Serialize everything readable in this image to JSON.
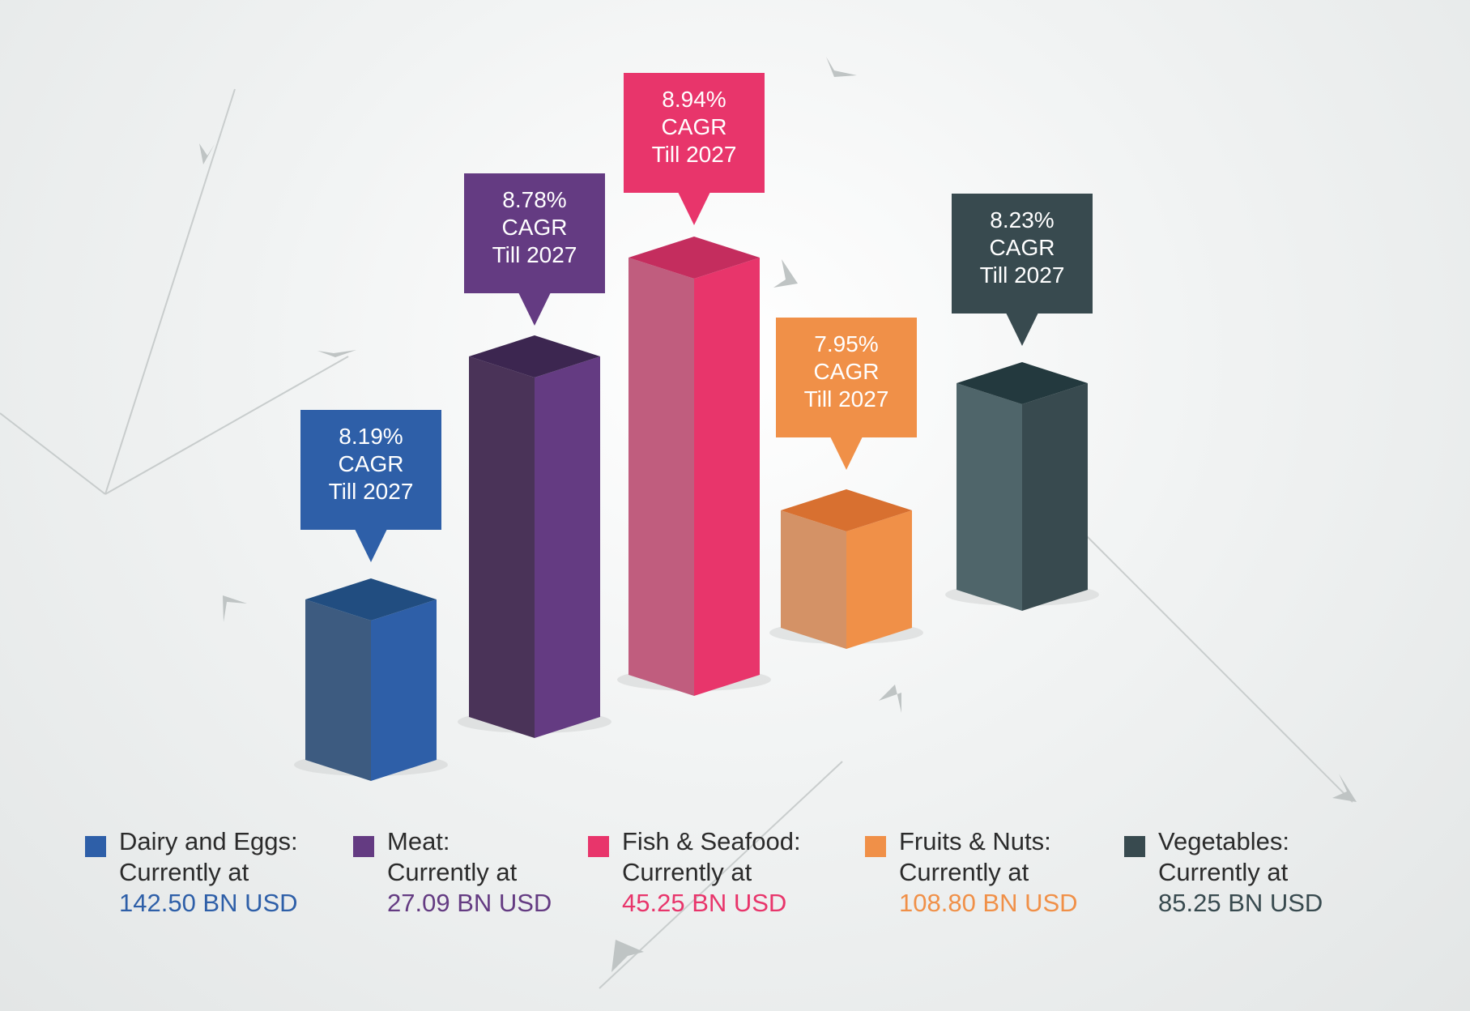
{
  "chart_data": {
    "type": "bar",
    "title": "",
    "categories": [
      "Dairy and Eggs",
      "Meat",
      "Fish & Seafood",
      "Fruits & Nuts",
      "Vegetables"
    ],
    "cagr_percent": [
      8.19,
      8.78,
      8.94,
      7.95,
      8.23
    ],
    "market_size_bn_usd": [
      142.5,
      27.09,
      45.25,
      108.8,
      85.25
    ],
    "bar_labels": [
      [
        "8.19%",
        "CAGR",
        "Till 2027"
      ],
      [
        "8.78%",
        "CAGR",
        "Till 2027"
      ],
      [
        "8.94%",
        "CAGR",
        "Till 2027"
      ],
      [
        "7.95%",
        "CAGR",
        "Till 2027"
      ],
      [
        "8.23%",
        "CAGR",
        "Till 2027"
      ]
    ],
    "legend": [
      {
        "name": "Dairy and Eggs:",
        "line2": "Currently at",
        "value": "142.50 BN USD",
        "color": "#2e5fa8"
      },
      {
        "name": "Meat:",
        "line2": "Currently at",
        "value": "27.09 BN USD",
        "color": "#643b82"
      },
      {
        "name": "Fish & Seafood:",
        "line2": "Currently at",
        "value": "45.25 BN USD",
        "color": "#e8356b"
      },
      {
        "name": "Fruits & Nuts:",
        "line2": "Currently at",
        "value": "108.80 BN USD",
        "color": "#f09048"
      },
      {
        "name": "Vegetables:",
        "line2": "Currently at",
        "value": "85.25 BN USD",
        "color": "#384a4f"
      }
    ],
    "colors": {
      "dairy": {
        "front": "#2e5fa8",
        "side": "#3d5b80",
        "top": "#214d80"
      },
      "meat": {
        "front": "#643b82",
        "side": "#4a3358",
        "top": "#3c2650"
      },
      "fish": {
        "front": "#e8356b",
        "side": "#c05d7e",
        "top": "#c42d5e"
      },
      "fruits": {
        "front": "#f09048",
        "side": "#d49266",
        "top": "#d87030"
      },
      "vegetables": {
        "front": "#384a4f",
        "side": "#4f656a",
        "top": "#23393e"
      }
    },
    "legend_position": "bottom",
    "grid": false
  }
}
